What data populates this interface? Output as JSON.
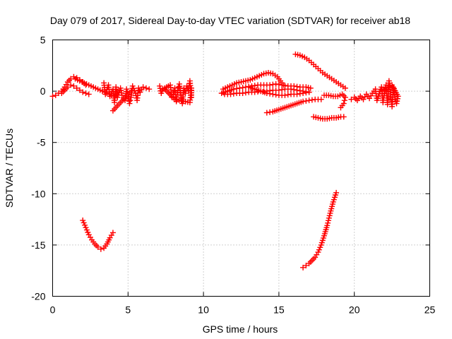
{
  "chart_data": {
    "type": "scatter",
    "title": "Day 079 of 2017, Sidereal Day-to-day VTEC variation (SDTVAR) for receiver ab18",
    "xlabel": "GPS time / hours",
    "ylabel": "SDTVAR / TECUs",
    "xlim": [
      0,
      25
    ],
    "ylim": [
      -20,
      5
    ],
    "xticks": [
      "0",
      "5",
      "10",
      "15",
      "20",
      "25"
    ],
    "yticks": [
      "5",
      "0",
      "-5",
      "-10",
      "-15",
      "-20"
    ],
    "grid": true,
    "marker": "plus",
    "color": "#ff0000",
    "segments": [
      {
        "name": "early-rise",
        "points": [
          [
            0.0,
            -0.5
          ],
          [
            0.2,
            -0.4
          ],
          [
            0.4,
            -0.2
          ],
          [
            0.6,
            0.0
          ],
          [
            0.8,
            0.4
          ],
          [
            1.0,
            0.9
          ],
          [
            1.2,
            1.2
          ],
          [
            1.4,
            1.4
          ],
          [
            1.6,
            1.3
          ],
          [
            1.8,
            1.1
          ],
          [
            2.0,
            0.9
          ],
          [
            2.2,
            0.6
          ]
        ]
      },
      {
        "name": "early-lower",
        "points": [
          [
            0.6,
            -0.2
          ],
          [
            0.8,
            0.1
          ],
          [
            1.0,
            0.4
          ],
          [
            1.2,
            0.6
          ],
          [
            1.4,
            0.5
          ],
          [
            1.6,
            0.3
          ],
          [
            1.8,
            0.1
          ],
          [
            2.0,
            -0.1
          ],
          [
            2.2,
            -0.2
          ],
          [
            2.4,
            -0.3
          ]
        ]
      },
      {
        "name": "descent-1",
        "points": [
          [
            1.5,
            1.2
          ],
          [
            1.8,
            1.0
          ],
          [
            2.1,
            0.8
          ],
          [
            2.4,
            0.6
          ],
          [
            2.7,
            0.4
          ],
          [
            3.0,
            0.2
          ],
          [
            3.3,
            0.0
          ],
          [
            3.6,
            -0.2
          ],
          [
            3.9,
            -0.4
          ],
          [
            4.1,
            -0.5
          ]
        ]
      },
      {
        "name": "block-3-4",
        "points": [
          [
            3.4,
            0.8
          ],
          [
            3.5,
            -0.3
          ],
          [
            3.7,
            0.6
          ],
          [
            3.8,
            -0.5
          ],
          [
            4.0,
            0.2
          ],
          [
            4.1,
            -1.1
          ],
          [
            4.2,
            0.4
          ],
          [
            4.3,
            -0.6
          ],
          [
            4.5,
            0.3
          ],
          [
            4.6,
            -0.4
          ],
          [
            4.8,
            -0.9
          ],
          [
            4.9,
            0.2
          ],
          [
            5.0,
            -0.3
          ],
          [
            5.1,
            -1.2
          ],
          [
            5.2,
            -0.6
          ],
          [
            5.3,
            0.5
          ],
          [
            5.5,
            -0.2
          ],
          [
            5.6,
            -0.9
          ],
          [
            5.7,
            0.3
          ],
          [
            5.8,
            -0.1
          ],
          [
            6.0,
            0.4
          ],
          [
            6.2,
            0.3
          ],
          [
            6.4,
            0.2
          ],
          [
            4.0,
            -1.9
          ],
          [
            5.2,
            0.0
          ]
        ]
      },
      {
        "name": "cluster-7-9",
        "points": [
          [
            7.1,
            0.5
          ],
          [
            7.2,
            -0.2
          ],
          [
            7.3,
            0.2
          ],
          [
            7.8,
            0.6
          ],
          [
            7.9,
            -0.6
          ],
          [
            8.0,
            -0.3
          ],
          [
            8.1,
            0.3
          ],
          [
            8.2,
            -1.0
          ],
          [
            8.3,
            0.1
          ],
          [
            8.4,
            0.7
          ],
          [
            8.5,
            -0.4
          ],
          [
            8.6,
            -1.2
          ],
          [
            8.7,
            0.3
          ],
          [
            8.8,
            -0.2
          ],
          [
            8.9,
            0.5
          ],
          [
            9.0,
            0.0
          ],
          [
            9.1,
            1.0
          ],
          [
            9.2,
            -0.6
          ],
          [
            9.2,
            0.3
          ],
          [
            9.1,
            -1.1
          ],
          [
            8.1,
            -0.8
          ],
          [
            7.5,
            0.1
          ]
        ]
      },
      {
        "name": "arc-upper",
        "points": [
          [
            11.3,
            0.2
          ],
          [
            11.6,
            0.4
          ],
          [
            11.9,
            0.6
          ],
          [
            12.2,
            0.8
          ],
          [
            12.5,
            0.9
          ],
          [
            12.8,
            1.0
          ],
          [
            13.1,
            1.1
          ],
          [
            13.4,
            1.3
          ],
          [
            13.7,
            1.5
          ],
          [
            14.0,
            1.7
          ],
          [
            14.3,
            1.8
          ],
          [
            14.6,
            1.7
          ],
          [
            14.9,
            1.4
          ],
          [
            15.1,
            1.0
          ],
          [
            15.3,
            0.6
          ]
        ]
      },
      {
        "name": "arc-middle",
        "points": [
          [
            11.2,
            -0.2
          ],
          [
            11.6,
            0.0
          ],
          [
            12.0,
            0.2
          ],
          [
            12.4,
            0.3
          ],
          [
            12.8,
            0.4
          ],
          [
            13.2,
            0.5
          ],
          [
            13.6,
            0.6
          ],
          [
            14.0,
            0.6
          ],
          [
            14.4,
            0.6
          ],
          [
            14.8,
            0.7
          ],
          [
            15.2,
            0.6
          ],
          [
            15.6,
            0.5
          ],
          [
            16.0,
            0.5
          ],
          [
            16.4,
            0.4
          ],
          [
            16.8,
            0.4
          ],
          [
            17.1,
            0.3
          ]
        ]
      },
      {
        "name": "arc-lower",
        "points": [
          [
            11.4,
            -0.3
          ],
          [
            11.8,
            -0.3
          ],
          [
            12.2,
            -0.2
          ],
          [
            12.6,
            -0.2
          ],
          [
            13.0,
            -0.1
          ],
          [
            13.4,
            -0.1
          ],
          [
            13.8,
            0.0
          ],
          [
            14.2,
            0.0
          ],
          [
            14.6,
            0.1
          ],
          [
            15.0,
            0.1
          ],
          [
            15.4,
            0.2
          ],
          [
            15.8,
            0.2
          ],
          [
            16.2,
            0.1
          ],
          [
            16.6,
            0.0
          ],
          [
            17.0,
            -0.1
          ]
        ]
      },
      {
        "name": "arc-descending",
        "points": [
          [
            13.0,
            0.4
          ],
          [
            13.4,
            0.2
          ],
          [
            13.8,
            0.0
          ],
          [
            14.2,
            -0.2
          ],
          [
            14.6,
            -0.3
          ],
          [
            15.0,
            -0.4
          ],
          [
            15.4,
            -0.4
          ],
          [
            15.8,
            -0.3
          ],
          [
            16.2,
            -0.3
          ],
          [
            16.6,
            -0.2
          ],
          [
            17.0,
            -0.1
          ]
        ]
      },
      {
        "name": "arc-rising-bottom",
        "points": [
          [
            14.2,
            -2.1
          ],
          [
            14.6,
            -2.0
          ],
          [
            15.0,
            -1.8
          ],
          [
            15.4,
            -1.6
          ],
          [
            15.8,
            -1.4
          ],
          [
            16.2,
            -1.2
          ],
          [
            16.6,
            -1.0
          ],
          [
            17.0,
            -0.9
          ],
          [
            17.4,
            -0.8
          ],
          [
            17.8,
            -0.8
          ]
        ]
      },
      {
        "name": "descent-upper-right",
        "points": [
          [
            16.1,
            3.6
          ],
          [
            16.4,
            3.5
          ],
          [
            16.7,
            3.3
          ],
          [
            17.0,
            3.0
          ],
          [
            17.3,
            2.6
          ],
          [
            17.6,
            2.2
          ],
          [
            17.9,
            1.8
          ],
          [
            18.2,
            1.5
          ],
          [
            18.5,
            1.2
          ],
          [
            18.8,
            0.9
          ],
          [
            19.1,
            0.6
          ],
          [
            19.4,
            0.3
          ]
        ]
      },
      {
        "name": "flat-right",
        "points": [
          [
            18.0,
            -0.4
          ],
          [
            18.3,
            -0.4
          ],
          [
            18.6,
            -0.5
          ],
          [
            18.9,
            -0.5
          ],
          [
            19.2,
            -0.3
          ],
          [
            19.4,
            -0.6
          ],
          [
            19.3,
            -1.2
          ],
          [
            19.1,
            -1.6
          ]
        ]
      },
      {
        "name": "low-flat",
        "points": [
          [
            17.3,
            -2.5
          ],
          [
            17.6,
            -2.6
          ],
          [
            17.9,
            -2.7
          ],
          [
            18.2,
            -2.7
          ],
          [
            18.5,
            -2.6
          ],
          [
            18.8,
            -2.6
          ],
          [
            19.1,
            -2.5
          ],
          [
            19.3,
            -2.5
          ]
        ]
      },
      {
        "name": "cluster-20-23",
        "points": [
          [
            19.8,
            -0.8
          ],
          [
            20.0,
            -0.6
          ],
          [
            20.2,
            -0.9
          ],
          [
            20.4,
            -0.5
          ],
          [
            20.6,
            -0.8
          ],
          [
            20.8,
            -0.3
          ],
          [
            21.0,
            -0.7
          ],
          [
            21.2,
            -0.2
          ],
          [
            21.4,
            0.2
          ],
          [
            21.5,
            -0.9
          ],
          [
            21.6,
            -0.5
          ],
          [
            21.8,
            0.4
          ],
          [
            21.9,
            -1.1
          ],
          [
            22.0,
            -0.2
          ],
          [
            22.1,
            0.6
          ],
          [
            22.2,
            -1.3
          ],
          [
            22.3,
            1.0
          ],
          [
            22.4,
            -0.3
          ],
          [
            22.5,
            -1.5
          ],
          [
            22.6,
            0.3
          ],
          [
            22.7,
            -0.8
          ],
          [
            22.8,
            -1.2
          ],
          [
            22.9,
            -0.5
          ],
          [
            22.5,
            0.6
          ],
          [
            21.7,
            0.0
          ]
        ]
      },
      {
        "name": "dip-early",
        "points": [
          [
            2.0,
            -12.6
          ],
          [
            2.2,
            -13.3
          ],
          [
            2.4,
            -14.0
          ],
          [
            2.6,
            -14.5
          ],
          [
            2.8,
            -14.9
          ],
          [
            3.0,
            -15.2
          ],
          [
            3.2,
            -15.4
          ],
          [
            3.4,
            -15.3
          ],
          [
            3.6,
            -14.9
          ],
          [
            3.8,
            -14.3
          ],
          [
            4.0,
            -13.8
          ]
        ]
      },
      {
        "name": "rise-late",
        "points": [
          [
            16.6,
            -17.2
          ],
          [
            16.8,
            -17.0
          ],
          [
            17.0,
            -16.8
          ],
          [
            17.2,
            -16.5
          ],
          [
            17.4,
            -16.2
          ],
          [
            17.6,
            -15.7
          ],
          [
            17.8,
            -15.0
          ],
          [
            18.0,
            -14.1
          ],
          [
            18.2,
            -13.1
          ],
          [
            18.4,
            -11.9
          ],
          [
            18.6,
            -10.8
          ],
          [
            18.8,
            -9.9
          ]
        ]
      }
    ]
  }
}
